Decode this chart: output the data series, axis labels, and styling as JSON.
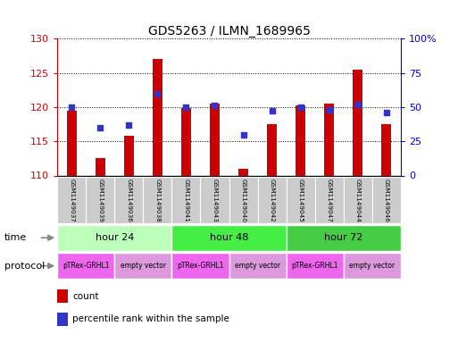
{
  "title": "GDS5263 / ILMN_1689965",
  "samples": [
    "GSM1149037",
    "GSM1149039",
    "GSM1149036",
    "GSM1149038",
    "GSM1149041",
    "GSM1149043",
    "GSM1149040",
    "GSM1149042",
    "GSM1149045",
    "GSM1149047",
    "GSM1149044",
    "GSM1149046"
  ],
  "count_values": [
    119.5,
    112.5,
    115.8,
    127.0,
    119.8,
    120.5,
    111.0,
    117.5,
    120.3,
    120.5,
    125.5,
    117.5
  ],
  "percentile_values": [
    50,
    35,
    37,
    60,
    50,
    51,
    30,
    47,
    50,
    48,
    52,
    46
  ],
  "ylim_left": [
    110,
    130
  ],
  "ylim_right": [
    0,
    100
  ],
  "yticks_left": [
    110,
    115,
    120,
    125,
    130
  ],
  "yticks_right": [
    0,
    25,
    50,
    75,
    100
  ],
  "bar_color": "#cc0000",
  "dot_color": "#3333cc",
  "bar_bottom": 110,
  "bar_width": 0.35,
  "time_groups": [
    {
      "label": "hour 24",
      "start": 0,
      "end": 4,
      "color": "#bbffbb"
    },
    {
      "label": "hour 48",
      "start": 4,
      "end": 8,
      "color": "#44ee44"
    },
    {
      "label": "hour 72",
      "start": 8,
      "end": 12,
      "color": "#44cc44"
    }
  ],
  "protocol_groups": [
    {
      "label": "pTRex-GRHL1",
      "start": 0,
      "end": 2,
      "color": "#ee66ee"
    },
    {
      "label": "empty vector",
      "start": 2,
      "end": 4,
      "color": "#dd99dd"
    },
    {
      "label": "pTRex-GRHL1",
      "start": 4,
      "end": 6,
      "color": "#ee66ee"
    },
    {
      "label": "empty vector",
      "start": 6,
      "end": 8,
      "color": "#dd99dd"
    },
    {
      "label": "pTRex-GRHL1",
      "start": 8,
      "end": 10,
      "color": "#ee66ee"
    },
    {
      "label": "empty vector",
      "start": 10,
      "end": 12,
      "color": "#dd99dd"
    }
  ],
  "bg_color": "#ffffff",
  "label_color_left": "#cc0000",
  "label_color_right": "#0000cc",
  "sample_bg_color": "#cccccc",
  "time_label": "time",
  "protocol_label": "protocol",
  "legend_count_color": "#cc0000",
  "legend_pct_color": "#3333cc"
}
